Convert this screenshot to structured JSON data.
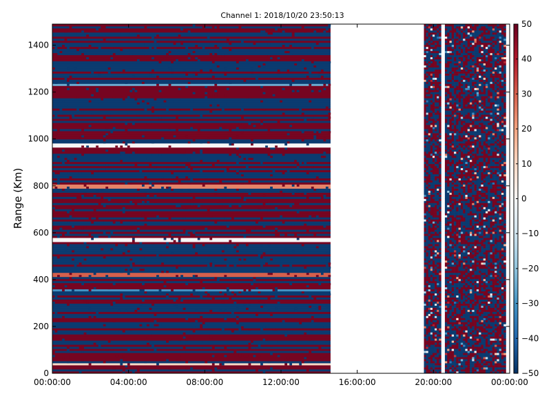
{
  "chart_data": {
    "type": "heatmap",
    "title": "Channel 1: 2018/10/20 23:50:13",
    "ylabel": "Range (Km)",
    "xlabel": "",
    "x_ticks": [
      "00:00:00",
      "04:00:00",
      "08:00:00",
      "12:00:00",
      "16:00:00",
      "20:00:00",
      "00:00:00"
    ],
    "x_range_hours": [
      0,
      24
    ],
    "y_ticks": [
      "0",
      "200",
      "400",
      "600",
      "800",
      "1000",
      "1200",
      "1400"
    ],
    "ylim": [
      0,
      1490
    ],
    "colorbar": {
      "ticks": [
        "50",
        "40",
        "30",
        "20",
        "10",
        "0",
        "−10",
        "−20",
        "−30",
        "−40",
        "−50"
      ],
      "range": [
        -50,
        50
      ],
      "colormap": [
        "#053061",
        "#2166ac",
        "#4393c3",
        "#92c5de",
        "#d1e5f0",
        "#f7f7f7",
        "#fddbc7",
        "#f4a582",
        "#d6604d",
        "#b2182b",
        "#67001f"
      ]
    },
    "data_segments_hours": [
      [
        0,
        14.6
      ],
      [
        19.5,
        20.4
      ],
      [
        20.6,
        23.8
      ]
    ],
    "dominant_values": [
      -48,
      48
    ],
    "accent_bands_km": [
      {
        "range": 420,
        "value": 30
      },
      {
        "range": 800,
        "value": 25
      },
      {
        "range": 1230,
        "value": -25
      },
      {
        "range": 350,
        "value": -30
      },
      {
        "range": 40,
        "value": 10
      },
      {
        "range": 975,
        "value": 0
      },
      {
        "range": 570,
        "value": 0
      }
    ]
  }
}
